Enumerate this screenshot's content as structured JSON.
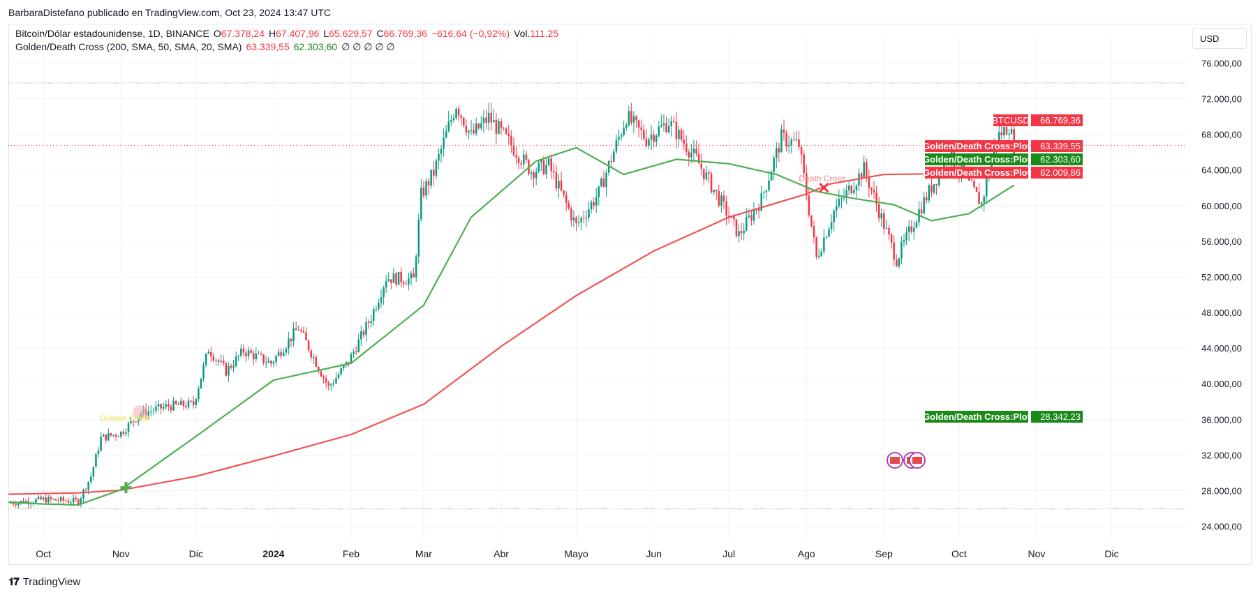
{
  "attribution": "BarbaraDistefano publicado en TradingView.com, Oct 23, 2024 13:47 UTC",
  "legend": {
    "symbol": "Bitcoin/Dólar estadounidense, 1D, BINANCE",
    "open_label": "O",
    "open": "67.378,24",
    "high_label": "H",
    "high": "67.407,96",
    "low_label": "L",
    "low": "65.629,57",
    "close_label": "C",
    "close": "66.769,36",
    "change": "−616,64 (−0,92%)",
    "vol_label": "Vol.",
    "vol": "111,25",
    "indicator": "Golden/Death Cross (200, SMA, 50, SMA, 20, SMA)",
    "ind_val1": "63.339,55",
    "ind_val2": "62.303,60",
    "ind_zeros": "∅ ∅ ∅ ∅ ∅"
  },
  "currency_button": "USD",
  "footer": {
    "brand": "TradingView"
  },
  "colors": {
    "up": "#089981",
    "down": "#f23645",
    "ma200": "#f05454",
    "ma50": "#4caf50",
    "badge_red": "#f23645",
    "badge_green": "#1b8a1b",
    "grid": "#f0f3fa"
  },
  "chart_data": {
    "type": "line",
    "title": "Bitcoin/Dólar estadounidense, 1D, BINANCE",
    "price_axis": [
      "76.000,00",
      "72.000,00",
      "68.000,00",
      "64.000,00",
      "60.000,00",
      "56.000,00",
      "52.000,00",
      "48.000,00",
      "44.000,00",
      "40.000,00",
      "36.000,00",
      "32.000,00",
      "28.000,00",
      "24.000,00"
    ],
    "price_axis_values": [
      76000,
      72000,
      68000,
      64000,
      60000,
      56000,
      52000,
      48000,
      44000,
      40000,
      36000,
      32000,
      28000,
      24000
    ],
    "ylim": [
      22400,
      77600
    ],
    "time_axis": [
      "Oct",
      "Nov",
      "Dic",
      "2024",
      "Feb",
      "Mar",
      "Abr",
      "Mayo",
      "Jun",
      "Jul",
      "Ago",
      "Sep",
      "Oct",
      "Nov",
      "Dic"
    ],
    "time_axis_dates": [
      "2023-10-01",
      "2023-11-01",
      "2023-12-01",
      "2024-01-01",
      "2024-02-01",
      "2024-03-01",
      "2024-04-01",
      "2024-05-01",
      "2024-06-01",
      "2024-07-01",
      "2024-08-01",
      "2024-09-01",
      "2024-10-01",
      "2024-11-01",
      "2024-12-01"
    ],
    "x_range": [
      "2023-09-17",
      "2024-12-31"
    ],
    "close_path": {
      "dates": [
        "2023-09-17",
        "2023-10-01",
        "2023-10-15",
        "2023-10-20",
        "2023-10-24",
        "2023-11-01",
        "2023-11-09",
        "2023-11-20",
        "2023-11-30",
        "2023-12-06",
        "2023-12-13",
        "2023-12-20",
        "2023-12-31",
        "2024-01-11",
        "2024-01-23",
        "2024-01-31",
        "2024-02-09",
        "2024-02-15",
        "2024-02-26",
        "2024-02-29",
        "2024-03-05",
        "2024-03-14",
        "2024-03-20",
        "2024-03-27",
        "2024-04-05",
        "2024-04-13",
        "2024-04-20",
        "2024-05-01",
        "2024-05-10",
        "2024-05-21",
        "2024-05-29",
        "2024-06-07",
        "2024-06-18",
        "2024-06-28",
        "2024-07-05",
        "2024-07-14",
        "2024-07-22",
        "2024-07-29",
        "2024-08-05",
        "2024-08-12",
        "2024-08-24",
        "2024-09-06",
        "2024-09-15",
        "2024-09-27",
        "2024-10-10",
        "2024-10-16",
        "2024-10-21",
        "2024-10-23"
      ],
      "values": [
        26600,
        27000,
        26800,
        29600,
        33900,
        34500,
        36700,
        37500,
        37700,
        43900,
        41400,
        43700,
        42300,
        46300,
        39600,
        42500,
        47500,
        51900,
        51700,
        61200,
        63700,
        71400,
        67800,
        69900,
        66800,
        63900,
        64500,
        57700,
        61400,
        70000,
        67500,
        69400,
        65200,
        60300,
        56700,
        60700,
        67600,
        66800,
        54100,
        59400,
        64100,
        53900,
        59400,
        65800,
        60200,
        67600,
        69000,
        66769
      ]
    },
    "series": [
      {
        "name": "Golden/Death Cross:Plot",
        "ma": "200 SMA",
        "dates": [
          "2023-09-17",
          "2023-10-15",
          "2023-11-01",
          "2023-12-01",
          "2024-01-01",
          "2024-02-01",
          "2024-03-01",
          "2024-04-01",
          "2024-05-01",
          "2024-06-01",
          "2024-07-01",
          "2024-08-01",
          "2024-08-10",
          "2024-09-01",
          "2024-10-01",
          "2024-10-23"
        ],
        "values": [
          27600,
          27750,
          28050,
          29600,
          31900,
          34300,
          37700,
          44200,
          49900,
          54900,
          58700,
          61300,
          62400,
          63500,
          63600,
          63339.55
        ]
      },
      {
        "name": "Golden/Death Cross:Plot",
        "ma": "50 SMA",
        "dates": [
          "2023-09-17",
          "2023-10-01",
          "2023-10-15",
          "2023-11-01",
          "2023-12-01",
          "2024-01-01",
          "2024-02-01",
          "2024-03-01",
          "2024-03-20",
          "2024-04-15",
          "2024-05-01",
          "2024-05-20",
          "2024-06-10",
          "2024-07-01",
          "2024-07-20",
          "2024-08-05",
          "2024-08-20",
          "2024-09-05",
          "2024-09-20",
          "2024-10-05",
          "2024-10-23"
        ],
        "values": [
          26700,
          26500,
          26400,
          28100,
          34100,
          40400,
          42300,
          48800,
          58700,
          65000,
          66500,
          63500,
          65200,
          64700,
          63500,
          61600,
          60800,
          60100,
          58300,
          59100,
          62303.6
        ]
      }
    ],
    "price_labels": [
      {
        "text": "BTCUSD",
        "value_text": "66.769,36",
        "value": 66769.36,
        "color": "red"
      },
      {
        "text": "Golden/Death Cross:Plot",
        "value_text": "63.339,55",
        "value": 63339.55,
        "color": "red"
      },
      {
        "text": "Golden/Death Cross:Plot",
        "value_text": "62.303,60",
        "value": 62303.6,
        "color": "green"
      },
      {
        "text": "Golden/Death Cross:Plot",
        "value_text": "62.009,86",
        "value": 62009.86,
        "color": "red"
      },
      {
        "text": "Golden/Death Cross:Plot",
        "value_text": "28.342,23",
        "value": 28342.23,
        "color": "green"
      }
    ],
    "annotations": [
      {
        "text": "Golden Cross",
        "date": "2023-11-03",
        "value": 28342.23
      },
      {
        "text": "Death Cross",
        "date": "2024-08-08",
        "value": 62009.86
      }
    ],
    "range_lines": [
      {
        "value": 73777
      },
      {
        "value": 25951
      }
    ],
    "grid": true
  }
}
